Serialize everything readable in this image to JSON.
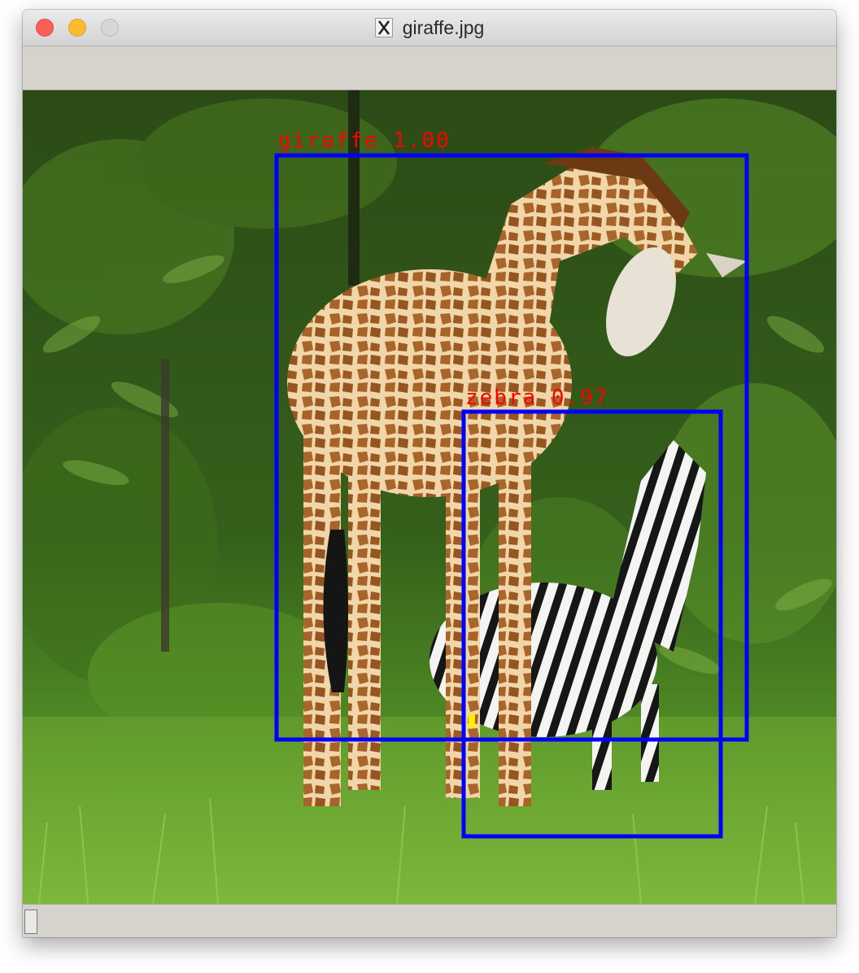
{
  "window": {
    "title": "giraffe.jpg",
    "icon": "x11-icon"
  },
  "detections": [
    {
      "label": "giraffe 1.00",
      "class": "giraffe",
      "score": 1.0
    },
    {
      "label": "zebra 0.97",
      "class": "zebra",
      "score": 0.97
    }
  ],
  "colors": {
    "box_stroke": "#0000ff",
    "label_text": "#ff0000",
    "close": "#fc5f57",
    "minimize": "#fdbc2e",
    "zoom": "#d7d7d7"
  }
}
